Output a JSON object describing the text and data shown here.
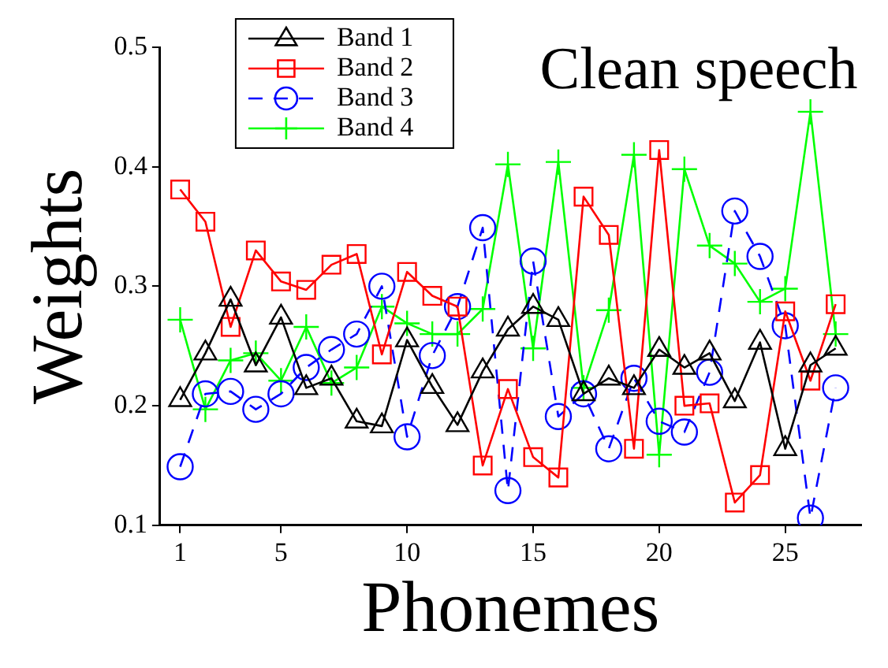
{
  "chart_data": {
    "type": "line",
    "title": "Clean speech",
    "xlabel": "Phonemes",
    "ylabel": "Weights",
    "x": [
      1,
      2,
      3,
      4,
      5,
      6,
      7,
      8,
      9,
      10,
      11,
      12,
      13,
      14,
      15,
      16,
      17,
      18,
      19,
      20,
      21,
      22,
      23,
      24,
      25,
      26,
      27
    ],
    "series": [
      {
        "name": "Band 1",
        "color": "#000000",
        "marker": "triangle",
        "line_style": "solid",
        "values": [
          0.205,
          0.244,
          0.289,
          0.234,
          0.274,
          0.215,
          0.223,
          0.187,
          0.183,
          0.255,
          0.216,
          0.184,
          0.229,
          0.264,
          0.283,
          0.272,
          0.21,
          0.223,
          0.215,
          0.247,
          0.232,
          0.244,
          0.204,
          0.253,
          0.164,
          0.234,
          0.248
        ]
      },
      {
        "name": "Band 2",
        "color": "#ff0000",
        "marker": "square",
        "line_style": "solid",
        "values": [
          0.381,
          0.354,
          0.266,
          0.33,
          0.304,
          0.297,
          0.318,
          0.327,
          0.243,
          0.312,
          0.292,
          0.283,
          0.15,
          0.214,
          0.157,
          0.14,
          0.375,
          0.343,
          0.164,
          0.414,
          0.2,
          0.202,
          0.119,
          0.142,
          0.279,
          0.221,
          0.285
        ]
      },
      {
        "name": "Band 3",
        "color": "#0000ff",
        "marker": "circle",
        "line_style": "dashed",
        "values": [
          0.149,
          0.21,
          0.212,
          0.197,
          0.21,
          0.232,
          0.247,
          0.26,
          0.3,
          0.174,
          0.242,
          0.283,
          0.349,
          0.129,
          0.321,
          0.191,
          0.21,
          0.164,
          0.223,
          0.187,
          0.178,
          0.228,
          0.363,
          0.325,
          0.267,
          0.106,
          0.215
        ]
      },
      {
        "name": "Band 4",
        "color": "#00ff00",
        "marker": "cross",
        "line_style": "solid",
        "values": [
          0.272,
          0.197,
          0.238,
          0.244,
          0.221,
          0.266,
          0.219,
          0.232,
          0.283,
          0.269,
          0.26,
          0.26,
          0.281,
          0.402,
          0.248,
          0.404,
          0.215,
          0.28,
          0.41,
          0.159,
          0.398,
          0.334,
          0.319,
          0.287,
          0.298,
          0.446,
          0.26
        ]
      }
    ],
    "xlim": [
      0.2,
      28
    ],
    "xticks": [
      1,
      5,
      10,
      15,
      20,
      25
    ],
    "ylim": [
      0.1,
      0.5
    ],
    "yticks": [
      0.1,
      0.2,
      0.3,
      0.4,
      0.5
    ],
    "grid": false,
    "legend": "top left"
  }
}
